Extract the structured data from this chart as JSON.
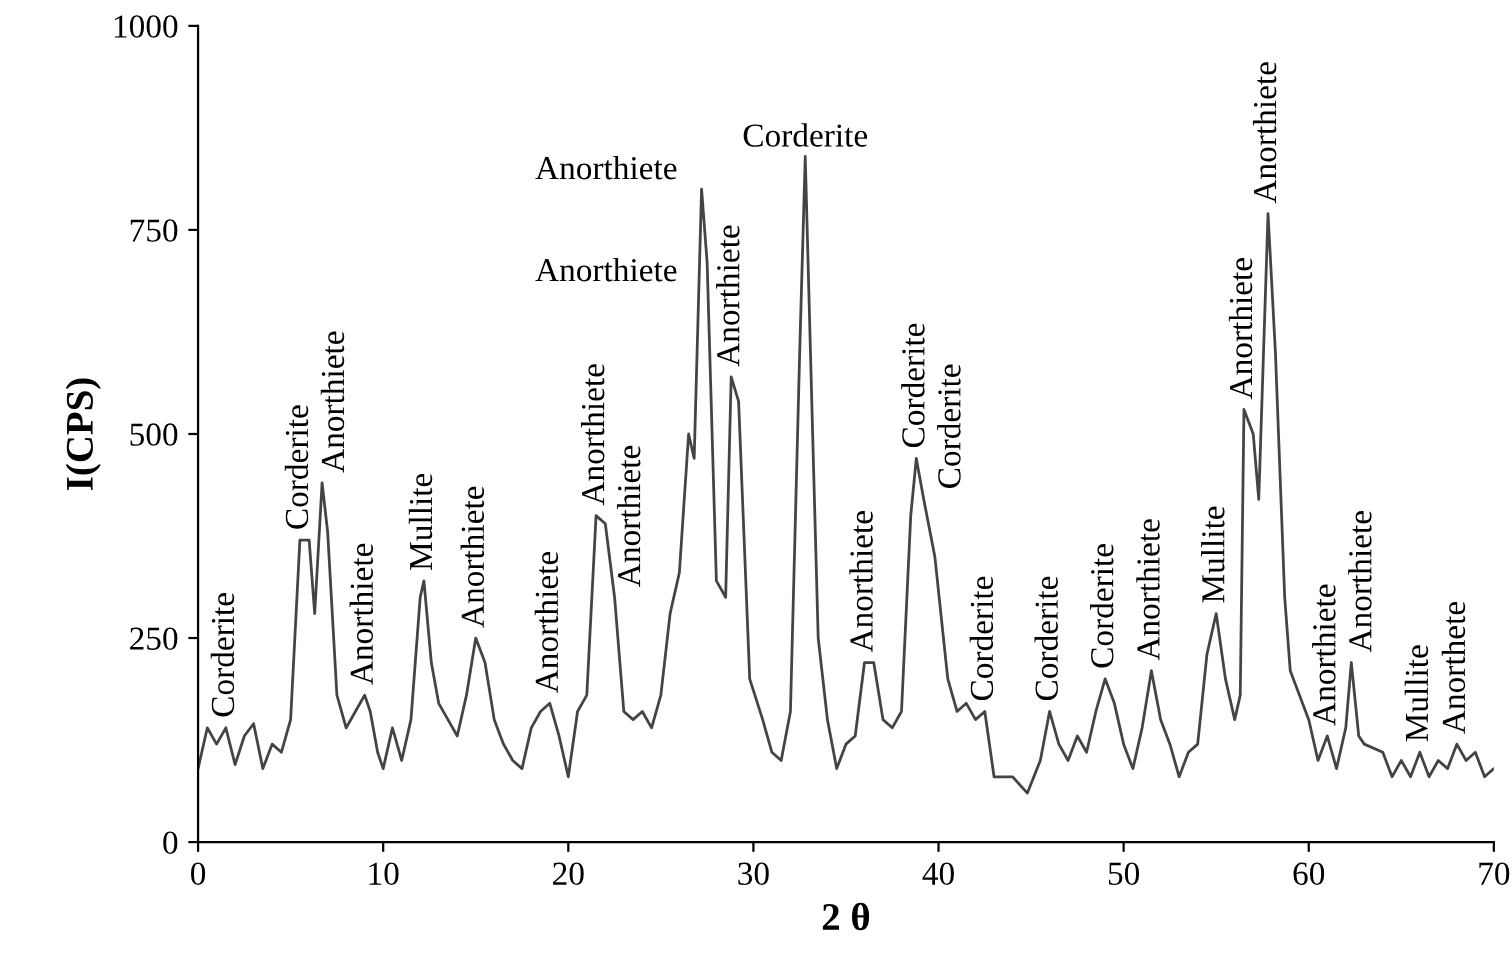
{
  "chart_data": {
    "type": "line",
    "xlabel": "2 θ",
    "ylabel": "I(CPS)",
    "xlim": [
      0,
      70
    ],
    "ylim": [
      0,
      1000
    ],
    "xticks": [
      0,
      10,
      20,
      30,
      40,
      50,
      60,
      70
    ],
    "yticks": [
      0,
      250,
      500,
      750,
      1000
    ],
    "grid": false,
    "marker": "none",
    "line_style": "solid",
    "series": [
      {
        "color": "#444444",
        "x": [
          0,
          0.5,
          1,
          1.5,
          2,
          2.5,
          3,
          3.5,
          4,
          4.5,
          5,
          5.5,
          6,
          6.3,
          6.7,
          7,
          7.5,
          8,
          8.5,
          9,
          9.3,
          9.7,
          10,
          10.5,
          11,
          11.5,
          12,
          12.2,
          12.6,
          13,
          13.5,
          14,
          14.5,
          15,
          15.5,
          16,
          16.5,
          17,
          17.5,
          18,
          18.5,
          19,
          19.5,
          20,
          20.5,
          21,
          21.5,
          22,
          22.5,
          23,
          23.5,
          24,
          24.5,
          25,
          25.5,
          26,
          26.5,
          26.8,
          27.2,
          27.5,
          28,
          28.5,
          28.8,
          29.2,
          29.8,
          30.5,
          31,
          31.5,
          32,
          32.5,
          32.8,
          33.2,
          33.5,
          34,
          34.5,
          35,
          35.5,
          36,
          36.5,
          37,
          37.5,
          38,
          38.5,
          38.8,
          39.2,
          39.8,
          40.5,
          41,
          41.5,
          42,
          42.5,
          43,
          44,
          44.8,
          45.5,
          46,
          46.5,
          47,
          47.5,
          48,
          48.5,
          49,
          49.5,
          50,
          50.5,
          51,
          51.5,
          52,
          52.5,
          53,
          53.5,
          54,
          54.5,
          55,
          55.5,
          56,
          56.3,
          56.5,
          57,
          57.3,
          57.8,
          58.2,
          58.7,
          59,
          59.5,
          60,
          60.5,
          61,
          61.5,
          62,
          62.3,
          62.7,
          63,
          64,
          64.5,
          65,
          65.5,
          66,
          66.5,
          67,
          67.5,
          68,
          68.5,
          69,
          69.5,
          70
        ],
        "values": [
          90,
          140,
          120,
          140,
          95,
          130,
          145,
          90,
          120,
          110,
          150,
          370,
          370,
          280,
          440,
          380,
          180,
          140,
          160,
          180,
          160,
          110,
          90,
          140,
          100,
          150,
          300,
          320,
          220,
          170,
          150,
          130,
          180,
          250,
          220,
          150,
          120,
          100,
          90,
          140,
          160,
          170,
          130,
          80,
          160,
          180,
          400,
          390,
          300,
          160,
          150,
          160,
          140,
          180,
          280,
          330,
          500,
          470,
          800,
          710,
          320,
          300,
          570,
          540,
          200,
          150,
          110,
          100,
          160,
          600,
          840,
          500,
          250,
          150,
          90,
          120,
          130,
          220,
          220,
          150,
          140,
          160,
          400,
          470,
          420,
          350,
          200,
          160,
          170,
          150,
          160,
          80,
          80,
          60,
          100,
          160,
          120,
          100,
          130,
          110,
          160,
          200,
          170,
          120,
          90,
          140,
          210,
          150,
          120,
          80,
          110,
          120,
          230,
          280,
          200,
          150,
          180,
          530,
          500,
          420,
          770,
          600,
          300,
          210,
          180,
          150,
          100,
          130,
          90,
          140,
          220,
          130,
          120,
          110,
          80,
          100,
          80,
          110,
          80,
          100,
          90,
          120,
          100,
          110,
          80,
          90
        ]
      }
    ],
    "annotations": [
      {
        "text": "Corderite",
        "x": 1.5,
        "y": 140
      },
      {
        "text": "Corderite",
        "x": 5.5,
        "y": 370
      },
      {
        "text": "Anorthiete",
        "x": 6.7,
        "y": 440
      },
      {
        "text": "Anorthiete",
        "x": 9,
        "y": 180
      },
      {
        "text": "Mullite",
        "x": 12.2,
        "y": 320
      },
      {
        "text": "Anorthiete",
        "x": 15,
        "y": 250
      },
      {
        "text": "Anorthiete",
        "x": 19,
        "y": 170
      },
      {
        "text": "Anorthiete",
        "x": 21.5,
        "y": 400
      },
      {
        "text": "Anorthiete",
        "x": 22.5,
        "y": 300
      },
      {
        "text": "Anorthiete",
        "x": 27.2,
        "y": 800
      },
      {
        "text": "Anorthiete",
        "x": 27.2,
        "y": 800
      },
      {
        "text": "Anorthiete",
        "x": 28.8,
        "y": 570
      },
      {
        "text": "Corderite",
        "x": 32.8,
        "y": 840
      },
      {
        "text": "Anorthiete",
        "x": 36,
        "y": 220
      },
      {
        "text": "Corderite",
        "x": 38.8,
        "y": 470
      },
      {
        "text": "Corderite",
        "x": 39.2,
        "y": 420
      },
      {
        "text": "Corderite",
        "x": 42.5,
        "y": 160
      },
      {
        "text": "Corderite",
        "x": 46,
        "y": 160
      },
      {
        "text": "Corderite",
        "x": 49,
        "y": 200
      },
      {
        "text": "Anorthiete",
        "x": 51.5,
        "y": 210
      },
      {
        "text": "Mullite",
        "x": 55,
        "y": 280
      },
      {
        "text": "Anorthiete",
        "x": 56.5,
        "y": 530
      },
      {
        "text": "Anorthiete",
        "x": 57.8,
        "y": 770
      },
      {
        "text": "Anorthiete",
        "x": 61,
        "y": 130
      },
      {
        "text": "Anorthiete",
        "x": 62.3,
        "y": 220
      },
      {
        "text": "Mullite",
        "x": 66,
        "y": 110
      },
      {
        "text": "Anorthete",
        "x": 68,
        "y": 120
      }
    ]
  }
}
